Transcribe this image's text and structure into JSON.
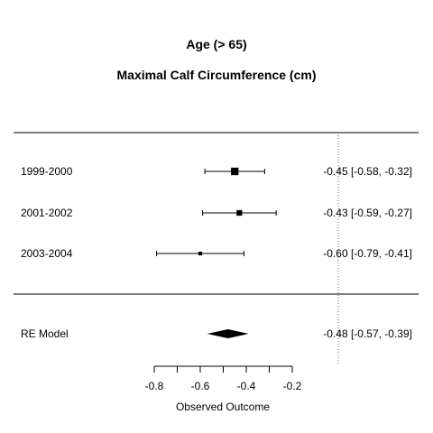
{
  "chart_data": {
    "type": "forest",
    "title": "Age (> 65)",
    "subtitle": "Maximal Calf Circumference (cm)",
    "xlabel": "Observed Outcome",
    "xlim": [
      -0.8,
      -0.2
    ],
    "xticks": [
      -0.8,
      -0.7,
      -0.6,
      -0.5,
      -0.4,
      -0.3,
      -0.2
    ],
    "xtick_labels": [
      {
        "value": -0.8,
        "text": "-0.8"
      },
      {
        "value": -0.6,
        "text": "-0.6"
      },
      {
        "value": -0.4,
        "text": "-0.4"
      },
      {
        "value": -0.2,
        "text": "-0.2"
      }
    ],
    "reference_line": 0,
    "studies": [
      {
        "label": "1999-2000",
        "estimate": -0.45,
        "lower": -0.58,
        "upper": -0.32,
        "ci_text": "-0.45 [-0.58, -0.32]",
        "weight": 0.45
      },
      {
        "label": "2001-2002",
        "estimate": -0.43,
        "lower": -0.59,
        "upper": -0.27,
        "ci_text": "-0.43 [-0.59, -0.27]",
        "weight": 0.3
      },
      {
        "label": "2003-2004",
        "estimate": -0.6,
        "lower": -0.79,
        "upper": -0.41,
        "ci_text": "-0.60 [-0.79, -0.41]",
        "weight": 0.15
      }
    ],
    "summary": {
      "label": "RE Model",
      "estimate": -0.48,
      "lower": -0.57,
      "upper": -0.39,
      "ci_text": "-0.48 [-0.57, -0.39]"
    }
  }
}
